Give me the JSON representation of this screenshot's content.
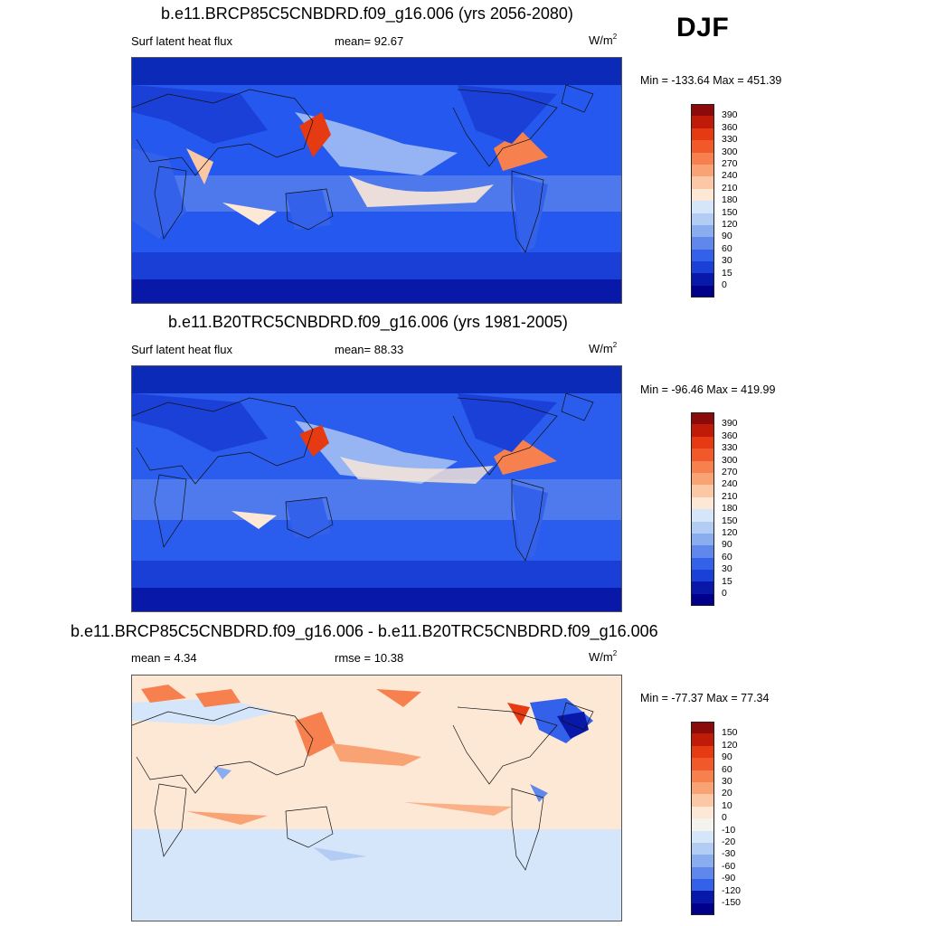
{
  "season_label": "DJF",
  "panels": [
    {
      "id": "future",
      "title": "b.e11.BRCP85C5CNBDRD.f09_g16.006 (yrs 2056-2080)",
      "left_label": "Surf latent heat flux",
      "stat_label": "mean=  92.67",
      "units": "W/m",
      "units_sup": "2",
      "minmax": "Min = -133.64 Max = 451.39",
      "colorbar_labels": [
        "390",
        "360",
        "330",
        "300",
        "270",
        "240",
        "210",
        "180",
        "150",
        "120",
        "90",
        "60",
        "30",
        "15",
        "0"
      ],
      "colorbar_colors": [
        "#8b0a0a",
        "#c01a08",
        "#e63a12",
        "#f2592a",
        "#f6814f",
        "#f9a274",
        "#fbc7a4",
        "#fde8d6",
        "#d6e6fa",
        "#b3ccf4",
        "#8aadf0",
        "#5f87ec",
        "#3461ea",
        "#1a40d8",
        "#0818a8",
        "#00008a"
      ]
    },
    {
      "id": "historical",
      "title": "b.e11.B20TRC5CNBDRD.f09_g16.006 (yrs 1981-2005)",
      "left_label": "Surf latent heat flux",
      "stat_label": "mean=  88.33",
      "units": "W/m",
      "units_sup": "2",
      "minmax": "Min = -96.46 Max = 419.99",
      "colorbar_labels": [
        "390",
        "360",
        "330",
        "300",
        "270",
        "240",
        "210",
        "180",
        "150",
        "120",
        "90",
        "60",
        "30",
        "15",
        "0"
      ],
      "colorbar_colors": [
        "#8b0a0a",
        "#c01a08",
        "#e63a12",
        "#f2592a",
        "#f6814f",
        "#f9a274",
        "#fbc7a4",
        "#fde8d6",
        "#d6e6fa",
        "#b3ccf4",
        "#8aadf0",
        "#5f87ec",
        "#3461ea",
        "#1a40d8",
        "#0818a8",
        "#00008a"
      ]
    },
    {
      "id": "difference",
      "title": "b.e11.BRCP85C5CNBDRD.f09_g16.006 - b.e11.B20TRC5CNBDRD.f09_g16.006",
      "left_label": "mean =   4.34",
      "stat_label": "rmse =  10.38",
      "units": "W/m",
      "units_sup": "2",
      "minmax": "Min = -77.37 Max =  77.34",
      "colorbar_labels": [
        "150",
        "120",
        "90",
        "60",
        "30",
        "20",
        "10",
        "0",
        "-10",
        "-20",
        "-30",
        "-60",
        "-90",
        "-120",
        "-150"
      ],
      "colorbar_colors": [
        "#8b0a0a",
        "#c01a08",
        "#e63a12",
        "#f2592a",
        "#f6814f",
        "#f9a274",
        "#fbc7a4",
        "#fde8d6",
        "#f5f3ee",
        "#d6e6fa",
        "#b3ccf4",
        "#8aadf0",
        "#5f87ec",
        "#3461ea",
        "#0818a8",
        "#00008a"
      ]
    }
  ]
}
